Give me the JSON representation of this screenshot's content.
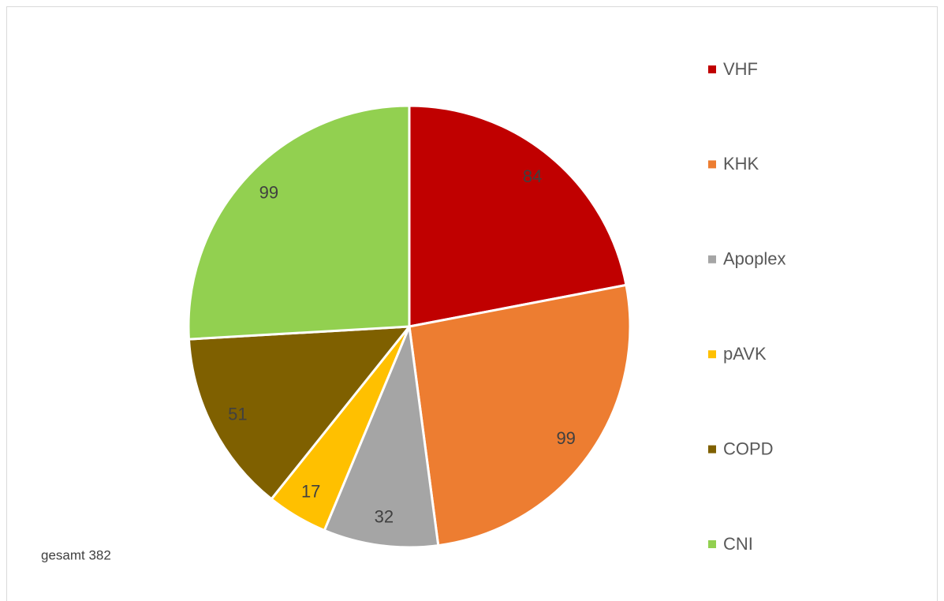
{
  "chart_data": {
    "type": "pie",
    "categories": [
      "VHF",
      "KHK",
      "Apoplex",
      "pAVK",
      "COPD",
      "CNI"
    ],
    "values": [
      84,
      99,
      32,
      17,
      51,
      99
    ],
    "colors": [
      "#c00000",
      "#ed7d31",
      "#a5a5a5",
      "#ffc000",
      "#7f6000",
      "#92d050"
    ],
    "annotation": "gesamt 382",
    "legend": "right"
  }
}
